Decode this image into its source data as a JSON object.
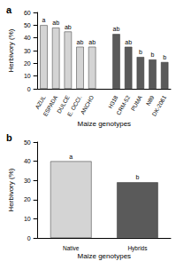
{
  "chart_data": [
    {
      "type": "bar",
      "title": "a",
      "x_label": "Maize genotypes",
      "y_label": "Herbivory (%)",
      "categories": [
        "AZUL",
        "ESPADA",
        "DULCE",
        "E. OCCI.",
        "ANCHO",
        null,
        "H318",
        "CRM-52",
        "PUMA",
        "N89",
        "DK-2061"
      ],
      "values": [
        50,
        48,
        45,
        33,
        33,
        null,
        43,
        33,
        25,
        23,
        21
      ],
      "annotations": [
        "a",
        "ab",
        "ab",
        "ab",
        "ab",
        null,
        "ab",
        "ab",
        "b",
        "b",
        "b"
      ],
      "colors": [
        "#d4d4d4",
        "#d4d4d4",
        "#d4d4d4",
        "#d4d4d4",
        "#d4d4d4",
        null,
        "#5a5a5a",
        "#5a5a5a",
        "#5a5a5a",
        "#5a5a5a",
        "#5a5a5a"
      ],
      "ylim": [
        0,
        60
      ],
      "yticks": [
        0,
        10,
        20,
        30,
        40,
        50,
        60
      ],
      "grid": false
    },
    {
      "type": "bar",
      "title": "b",
      "x_label": "Maize genotypes",
      "y_label": "Herbivory (%)",
      "categories": [
        "Native",
        "Hybrids"
      ],
      "values": [
        40,
        29
      ],
      "annotations": [
        "a",
        "b"
      ],
      "colors": [
        "#d4d4d4",
        "#5a5a5a"
      ],
      "ylim": [
        0,
        50
      ],
      "yticks": [
        0,
        10,
        20,
        30,
        40,
        50
      ],
      "grid": false
    }
  ]
}
